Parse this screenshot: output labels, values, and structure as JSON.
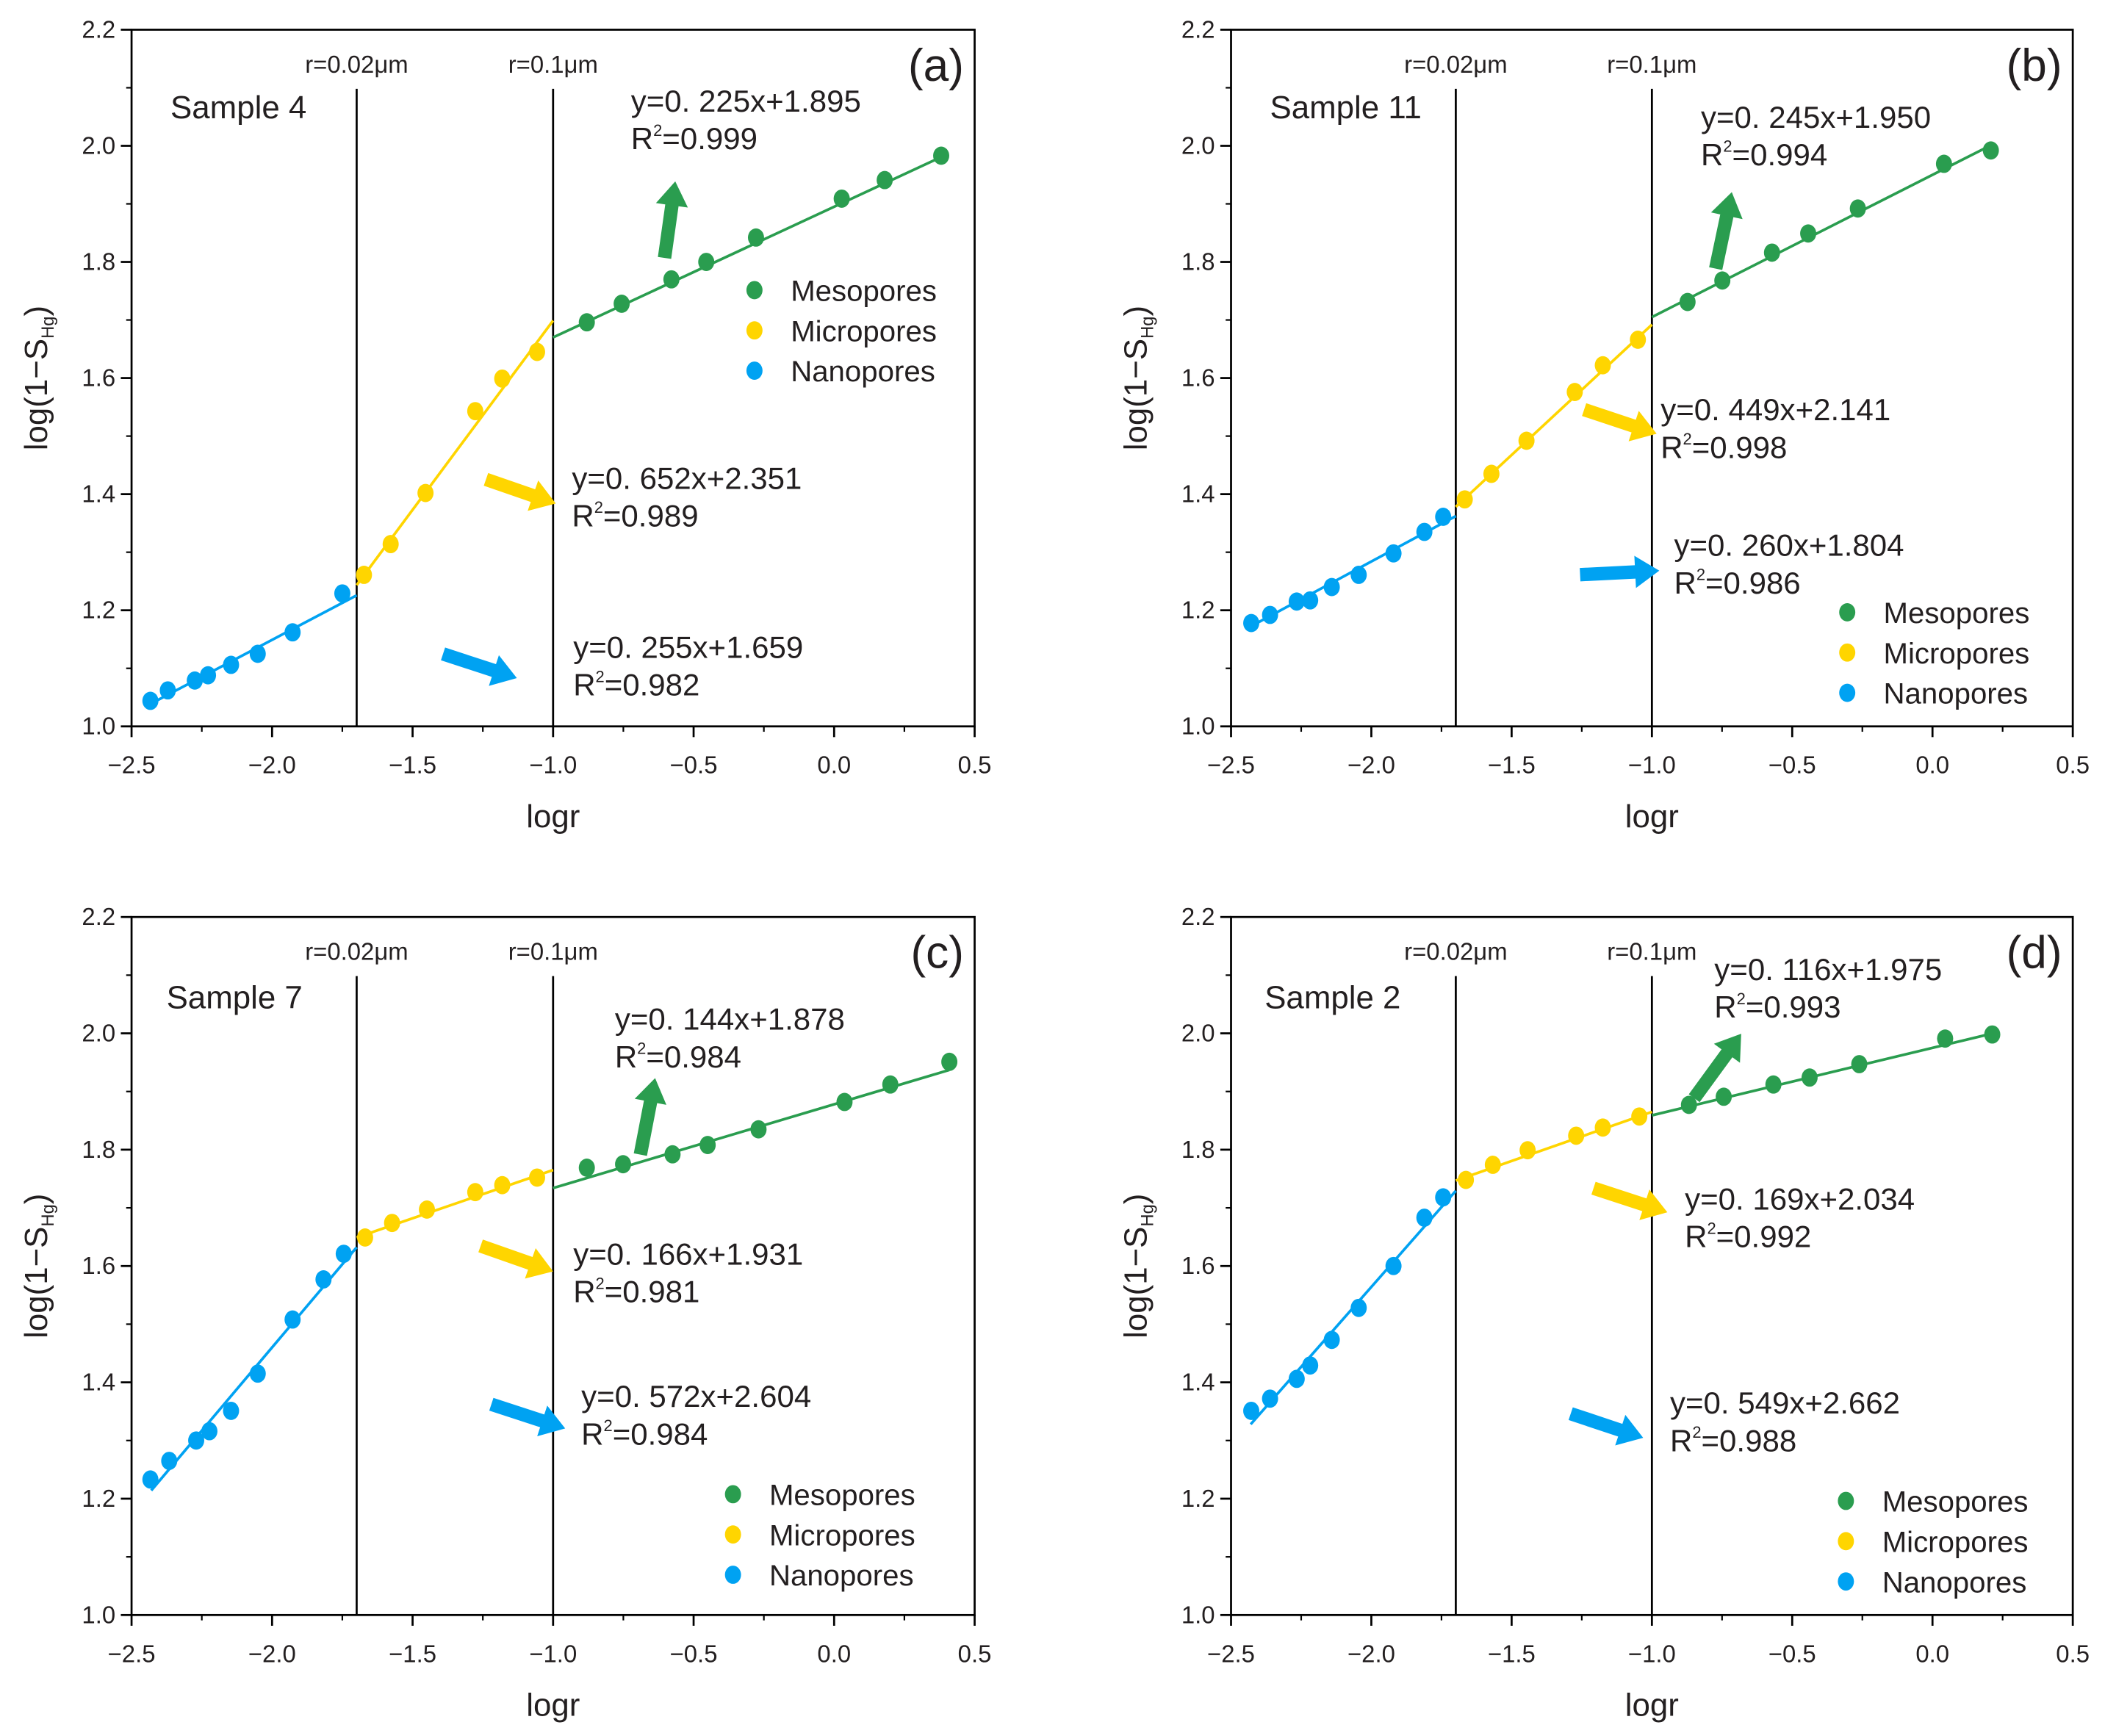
{
  "chart_data": [
    {
      "type": "scatter",
      "panel_label": "(a)",
      "sample": "Sample 4",
      "xlabel": "logr",
      "ylabel": "log(1−S",
      "ylabel_sub": "Hg",
      "ylabel_end": ")",
      "xlim": [
        -2.5,
        0.5
      ],
      "ylim": [
        1.0,
        2.2
      ],
      "xticks": [
        "-2.5",
        "-2.0",
        "-1.5",
        "-1.0",
        "-0.5",
        "0.0",
        "0.5"
      ],
      "yticks": [
        "1.0",
        "1.2",
        "1.4",
        "1.6",
        "1.8",
        "2.0",
        "2.2"
      ],
      "boundaries": [
        {
          "x": -1.699,
          "label": "r=0.02μm"
        },
        {
          "x": -1.0,
          "label": "r=0.1μm"
        }
      ],
      "series": [
        {
          "name": "Mesopores",
          "color": "#2a9d4f",
          "fit": {
            "slope": 0.225,
            "intercept": 1.895,
            "range": [
              -1.0,
              0.39
            ]
          },
          "equation": "y=0. 225x+1.895",
          "r2": "=0.999",
          "x": [
            -0.88,
            -0.756,
            -0.579,
            -0.455,
            -0.278,
            0.027,
            0.18,
            0.381
          ],
          "y": [
            1.696,
            1.728,
            1.77,
            1.8,
            1.842,
            1.909,
            1.941,
            1.983
          ]
        },
        {
          "name": "Micropores",
          "color": "#ffd500",
          "fit": {
            "slope": 0.652,
            "intercept": 2.351,
            "range": [
              -1.699,
              -1.0
            ]
          },
          "equation": "y=0. 652x+2.351",
          "r2": "=0.989",
          "x": [
            -1.673,
            -1.578,
            -1.454,
            -1.277,
            -1.181,
            -1.057
          ],
          "y": [
            1.261,
            1.314,
            1.402,
            1.543,
            1.599,
            1.645
          ]
        },
        {
          "name": "Nanopores",
          "color": "#00a2f2",
          "fit": {
            "slope": 0.255,
            "intercept": 1.659,
            "range": [
              -2.44,
              -1.699
            ]
          },
          "equation": "y=0. 255x+1.659",
          "r2": "=0.982",
          "x": [
            -2.433,
            -2.371,
            -2.275,
            -2.228,
            -2.146,
            -2.051,
            -1.927,
            -1.75
          ],
          "y": [
            1.044,
            1.062,
            1.079,
            1.088,
            1.106,
            1.125,
            1.162,
            1.229
          ]
        }
      ]
    },
    {
      "type": "scatter",
      "panel_label": "(b)",
      "sample": "Sample 11",
      "xlabel": "logr",
      "ylabel": "log(1−S",
      "ylabel_sub": "Hg",
      "ylabel_end": ")",
      "xlim": [
        -2.5,
        0.5
      ],
      "ylim": [
        1.0,
        2.2
      ],
      "xticks": [
        "-2.5",
        "-2.0",
        "-1.5",
        "-1.0",
        "-0.5",
        "0.0",
        "0.5"
      ],
      "yticks": [
        "1.0",
        "1.2",
        "1.4",
        "1.6",
        "1.8",
        "2.0",
        "2.2"
      ],
      "boundaries": [
        {
          "x": -1.699,
          "label": "r=0.02μm"
        },
        {
          "x": -1.0,
          "label": "r=0.1μm"
        }
      ],
      "series": [
        {
          "name": "Mesopores",
          "color": "#2a9d4f",
          "fit": {
            "slope": 0.245,
            "intercept": 1.95,
            "range": [
              -1.0,
              0.21
            ]
          },
          "equation": "y=0. 245x+1.950",
          "r2": "=0.994",
          "x": [
            -0.873,
            -0.749,
            -0.572,
            -0.443,
            -0.266,
            0.041,
            0.208
          ],
          "y": [
            1.731,
            1.768,
            1.816,
            1.849,
            1.892,
            1.969,
            1.992
          ]
        },
        {
          "name": "Micropores",
          "color": "#ffd500",
          "fit": {
            "slope": 0.449,
            "intercept": 2.141,
            "range": [
              -1.699,
              -1.0
            ]
          },
          "equation": "y=0. 449x+2.141",
          "r2": "=0.998",
          "x": [
            -1.667,
            -1.572,
            -1.447,
            -1.275,
            -1.175,
            -1.05
          ],
          "y": [
            1.391,
            1.435,
            1.492,
            1.576,
            1.622,
            1.666
          ]
        },
        {
          "name": "Nanopores",
          "color": "#00a2f2",
          "fit": {
            "slope": 0.26,
            "intercept": 1.804,
            "range": [
              -2.44,
              -1.699
            ]
          },
          "equation": "y=0. 260x+1.804",
          "r2": "=0.986",
          "x": [
            -2.428,
            -2.361,
            -2.266,
            -2.218,
            -2.141,
            -2.045,
            -1.921,
            -1.811,
            -1.744
          ],
          "y": [
            1.178,
            1.192,
            1.215,
            1.217,
            1.24,
            1.261,
            1.298,
            1.335,
            1.361
          ]
        }
      ]
    },
    {
      "type": "scatter",
      "panel_label": "(c)",
      "sample": "Sample 7",
      "xlabel": "logr",
      "ylabel": "log(1−S",
      "ylabel_sub": "Hg",
      "ylabel_end": ")",
      "xlim": [
        -2.5,
        0.5
      ],
      "ylim": [
        1.0,
        2.2
      ],
      "xticks": [
        "-2.5",
        "-2.0",
        "-1.5",
        "-1.0",
        "-0.5",
        "0.0",
        "0.5"
      ],
      "yticks": [
        "1.0",
        "1.2",
        "1.4",
        "1.6",
        "1.8",
        "2.0",
        "2.2"
      ],
      "boundaries": [
        {
          "x": -1.699,
          "label": "r=0.02μm"
        },
        {
          "x": -1.0,
          "label": "r=0.1μm"
        }
      ],
      "series": [
        {
          "name": "Mesopores",
          "color": "#2a9d4f",
          "fit": {
            "slope": 0.144,
            "intercept": 1.878,
            "range": [
              -1.0,
              0.41
            ]
          },
          "equation": "y=0. 144x+1.878",
          "r2": "=0.984",
          "x": [
            -0.88,
            -0.751,
            -0.575,
            -0.45,
            -0.269,
            0.037,
            0.2,
            0.41
          ],
          "y": [
            1.769,
            1.775,
            1.792,
            1.808,
            1.835,
            1.882,
            1.912,
            1.951
          ]
        },
        {
          "name": "Micropores",
          "color": "#ffd500",
          "fit": {
            "slope": 0.166,
            "intercept": 1.931,
            "range": [
              -1.699,
              -1.0
            ]
          },
          "equation": "y=0. 166x+1.931",
          "r2": "=0.981",
          "x": [
            -1.669,
            -1.573,
            -1.449,
            -1.277,
            -1.181,
            -1.057
          ],
          "y": [
            1.649,
            1.674,
            1.697,
            1.727,
            1.739,
            1.752
          ]
        },
        {
          "name": "Nanopores",
          "color": "#00a2f2",
          "fit": {
            "slope": 0.572,
            "intercept": 2.604,
            "range": [
              -2.43,
              -1.699
            ]
          },
          "equation": "y=0. 572x+2.604",
          "r2": "=0.984",
          "x": [
            -2.433,
            -2.366,
            -2.27,
            -2.223,
            -2.146,
            -2.051,
            -1.927,
            -1.817,
            -1.745
          ],
          "y": [
            1.233,
            1.265,
            1.3,
            1.316,
            1.351,
            1.415,
            1.508,
            1.577,
            1.621
          ]
        }
      ]
    },
    {
      "type": "scatter",
      "panel_label": "(d)",
      "sample": "Sample 2",
      "xlabel": "logr",
      "ylabel": "log(1−S",
      "ylabel_sub": "Hg",
      "ylabel_end": ")",
      "xlim": [
        -2.5,
        0.5
      ],
      "ylim": [
        1.0,
        2.2
      ],
      "xticks": [
        "-2.5",
        "-2.0",
        "-1.5",
        "-1.0",
        "-0.5",
        "0.0",
        "0.5"
      ],
      "yticks": [
        "1.0",
        "1.2",
        "1.4",
        "1.6",
        "1.8",
        "2.0",
        "2.2"
      ],
      "boundaries": [
        {
          "x": -1.699,
          "label": "r=0.02μm"
        },
        {
          "x": -1.0,
          "label": "r=0.1μm"
        }
      ],
      "series": [
        {
          "name": "Mesopores",
          "color": "#2a9d4f",
          "fit": {
            "slope": 0.116,
            "intercept": 1.975,
            "range": [
              -1.0,
              0.21
            ]
          },
          "equation": "y=0. 116x+1.975",
          "r2": "=0.993",
          "x": [
            -0.868,
            -0.744,
            -0.567,
            -0.438,
            -0.261,
            0.045,
            0.213
          ],
          "y": [
            1.877,
            1.891,
            1.912,
            1.924,
            1.947,
            1.991,
            1.998
          ]
        },
        {
          "name": "Micropores",
          "color": "#ffd500",
          "fit": {
            "slope": 0.169,
            "intercept": 2.034,
            "range": [
              -1.699,
              -1.0
            ]
          },
          "equation": "y=0. 169x+2.034",
          "r2": "=0.992",
          "x": [
            -1.663,
            -1.567,
            -1.443,
            -1.27,
            -1.175,
            -1.045
          ],
          "y": [
            1.748,
            1.774,
            1.799,
            1.824,
            1.838,
            1.857
          ]
        },
        {
          "name": "Nanopores",
          "color": "#00a2f2",
          "fit": {
            "slope": 0.549,
            "intercept": 2.662,
            "range": [
              -2.43,
              -1.699
            ]
          },
          "equation": "y=0. 549x+2.662",
          "r2": "=0.988",
          "x": [
            -2.428,
            -2.361,
            -2.266,
            -2.218,
            -2.141,
            -2.045,
            -1.921,
            -1.811,
            -1.744
          ],
          "y": [
            1.351,
            1.372,
            1.406,
            1.429,
            1.473,
            1.528,
            1.6,
            1.683,
            1.718
          ]
        }
      ]
    }
  ]
}
